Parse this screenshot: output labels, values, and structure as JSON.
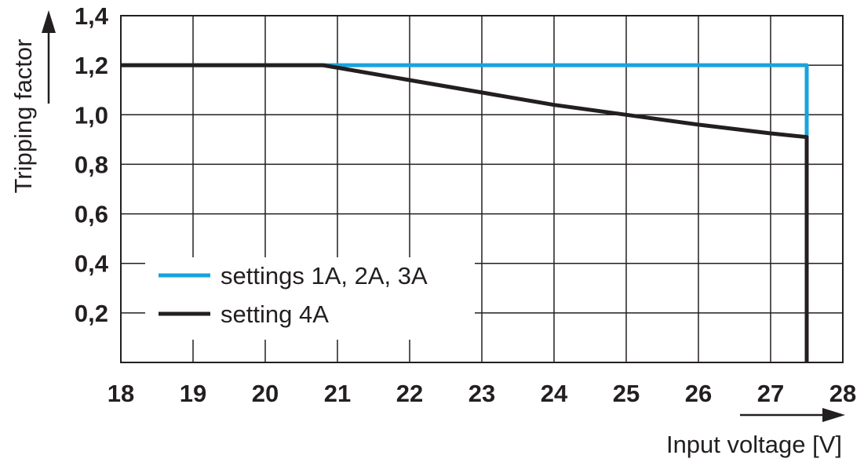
{
  "chart_data": {
    "type": "line",
    "xlabel": "Input voltage [V]",
    "ylabel": "Tripping factor",
    "xlim": [
      18,
      28
    ],
    "ylim": [
      0,
      1.4
    ],
    "x_ticks": [
      "18",
      "19",
      "20",
      "21",
      "22",
      "23",
      "24",
      "25",
      "26",
      "27",
      "28"
    ],
    "y_ticks": [
      "0,2",
      "0,4",
      "0,6",
      "0,8",
      "1,0",
      "1,2",
      "1,4"
    ],
    "grid": true,
    "legend_position": "bottom-left",
    "series": [
      {
        "name": "settings 1A, 2A, 3A",
        "color": "#1aa3dc",
        "points": [
          [
            18,
            1.2
          ],
          [
            27.5,
            1.2
          ],
          [
            27.5,
            0.9
          ]
        ]
      },
      {
        "name": "setting 4A",
        "color": "#231f20",
        "points": [
          [
            18,
            1.2
          ],
          [
            20.8,
            1.2
          ],
          [
            22,
            1.14
          ],
          [
            23,
            1.09
          ],
          [
            24,
            1.04
          ],
          [
            25,
            1.0
          ],
          [
            26,
            0.96
          ],
          [
            27,
            0.925
          ],
          [
            27.5,
            0.91
          ],
          [
            27.5,
            0
          ]
        ]
      }
    ]
  }
}
